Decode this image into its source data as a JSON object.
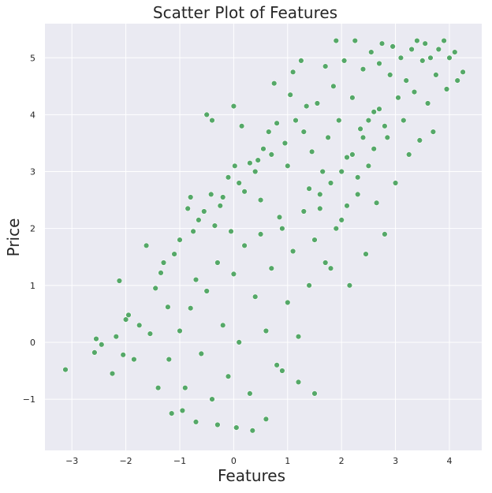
{
  "chart_data": {
    "type": "scatter",
    "title": "Scatter Plot of Features",
    "xlabel": "Features",
    "ylabel": "Price",
    "xlim": [
      -3.5,
      4.6
    ],
    "ylim": [
      -1.9,
      5.6
    ],
    "x_ticks": [
      -3,
      -2,
      -1,
      0,
      1,
      2,
      3,
      4
    ],
    "x_tick_labels": [
      "−3",
      "−2",
      "−1",
      "0",
      "1",
      "2",
      "3",
      "4"
    ],
    "y_ticks": [
      -1,
      0,
      1,
      2,
      3,
      4,
      5
    ],
    "y_tick_labels": [
      "−1",
      "0",
      "1",
      "2",
      "3",
      "4",
      "5"
    ],
    "grid": true,
    "legend": "none",
    "colors": {
      "marker": "#55a868",
      "marker_edge": "#ffffff",
      "background": "#eaeaf2",
      "grid": "#ffffff"
    },
    "series": [
      {
        "points": [
          [
            -3.12,
            -0.48
          ],
          [
            -2.58,
            -0.18
          ],
          [
            -2.55,
            0.06
          ],
          [
            -2.45,
            -0.04
          ],
          [
            -2.25,
            -0.55
          ],
          [
            -2.18,
            0.1
          ],
          [
            -2.12,
            1.08
          ],
          [
            -2.05,
            -0.22
          ],
          [
            -2.0,
            0.4
          ],
          [
            -1.95,
            0.48
          ],
          [
            -1.85,
            -0.3
          ],
          [
            -1.75,
            0.3
          ],
          [
            -1.62,
            1.7
          ],
          [
            -1.55,
            0.15
          ],
          [
            -1.45,
            0.95
          ],
          [
            -1.4,
            -0.8
          ],
          [
            -1.35,
            1.22
          ],
          [
            -1.3,
            1.4
          ],
          [
            -1.22,
            0.62
          ],
          [
            -1.15,
            -1.25
          ],
          [
            -1.1,
            1.55
          ],
          [
            -1.0,
            1.8
          ],
          [
            -0.95,
            -1.2
          ],
          [
            -0.85,
            2.35
          ],
          [
            -0.8,
            2.55
          ],
          [
            -0.75,
            1.95
          ],
          [
            -0.7,
            -1.4
          ],
          [
            -0.65,
            2.15
          ],
          [
            -0.55,
            2.3
          ],
          [
            -0.5,
            4.0
          ],
          [
            -0.42,
            2.6
          ],
          [
            -0.4,
            3.9
          ],
          [
            -0.35,
            2.05
          ],
          [
            -0.3,
            -1.45
          ],
          [
            -0.25,
            2.4
          ],
          [
            -0.2,
            2.55
          ],
          [
            -0.1,
            2.9
          ],
          [
            -0.05,
            1.95
          ],
          [
            0.0,
            4.15
          ],
          [
            0.02,
            3.1
          ],
          [
            0.05,
            -1.5
          ],
          [
            0.1,
            2.8
          ],
          [
            0.15,
            3.8
          ],
          [
            0.2,
            2.65
          ],
          [
            0.3,
            3.15
          ],
          [
            0.35,
            -1.55
          ],
          [
            0.4,
            3.0
          ],
          [
            0.45,
            3.2
          ],
          [
            0.5,
            2.5
          ],
          [
            0.55,
            3.4
          ],
          [
            0.6,
            -1.35
          ],
          [
            0.65,
            3.7
          ],
          [
            0.7,
            3.3
          ],
          [
            0.75,
            4.55
          ],
          [
            0.8,
            3.85
          ],
          [
            0.85,
            2.2
          ],
          [
            0.9,
            -0.5
          ],
          [
            0.95,
            3.5
          ],
          [
            1.0,
            3.1
          ],
          [
            1.05,
            4.35
          ],
          [
            1.1,
            4.75
          ],
          [
            1.15,
            3.9
          ],
          [
            1.2,
            -0.7
          ],
          [
            1.25,
            4.95
          ],
          [
            1.3,
            3.7
          ],
          [
            1.35,
            4.15
          ],
          [
            1.4,
            2.7
          ],
          [
            1.45,
            3.35
          ],
          [
            1.5,
            -0.9
          ],
          [
            1.55,
            4.2
          ],
          [
            1.6,
            2.35
          ],
          [
            1.65,
            3.0
          ],
          [
            1.7,
            4.85
          ],
          [
            1.75,
            3.6
          ],
          [
            1.8,
            1.3
          ],
          [
            1.85,
            4.5
          ],
          [
            1.9,
            5.3
          ],
          [
            1.95,
            3.9
          ],
          [
            2.0,
            2.15
          ],
          [
            2.05,
            4.95
          ],
          [
            2.1,
            3.25
          ],
          [
            2.15,
            1.0
          ],
          [
            2.2,
            4.3
          ],
          [
            2.25,
            5.3
          ],
          [
            2.3,
            2.6
          ],
          [
            2.35,
            3.75
          ],
          [
            2.4,
            4.8
          ],
          [
            2.45,
            1.55
          ],
          [
            2.5,
            3.1
          ],
          [
            2.55,
            5.1
          ],
          [
            2.6,
            4.05
          ],
          [
            2.65,
            2.45
          ],
          [
            2.7,
            4.9
          ],
          [
            2.75,
            5.25
          ],
          [
            2.8,
            1.9
          ],
          [
            2.85,
            3.6
          ],
          [
            2.9,
            4.7
          ],
          [
            2.95,
            5.2
          ],
          [
            3.0,
            2.8
          ],
          [
            3.05,
            4.3
          ],
          [
            3.1,
            5.0
          ],
          [
            3.15,
            3.9
          ],
          [
            3.2,
            4.6
          ],
          [
            3.25,
            3.3
          ],
          [
            3.3,
            5.15
          ],
          [
            3.35,
            4.4
          ],
          [
            3.4,
            5.3
          ],
          [
            3.45,
            3.55
          ],
          [
            3.5,
            4.95
          ],
          [
            3.55,
            5.25
          ],
          [
            3.6,
            4.2
          ],
          [
            3.65,
            5.0
          ],
          [
            3.7,
            3.7
          ],
          [
            3.75,
            4.7
          ],
          [
            3.8,
            5.15
          ],
          [
            3.9,
            5.3
          ],
          [
            3.95,
            4.45
          ],
          [
            4.0,
            5.0
          ],
          [
            4.1,
            5.1
          ],
          [
            4.15,
            4.6
          ],
          [
            4.25,
            4.75
          ],
          [
            -1.2,
            -0.3
          ],
          [
            -1.0,
            0.2
          ],
          [
            -0.9,
            -0.8
          ],
          [
            -0.8,
            0.6
          ],
          [
            -0.7,
            1.1
          ],
          [
            -0.6,
            -0.2
          ],
          [
            -0.5,
            0.9
          ],
          [
            -0.4,
            -1.0
          ],
          [
            -0.3,
            1.4
          ],
          [
            -0.2,
            0.3
          ],
          [
            -0.1,
            -0.6
          ],
          [
            0.0,
            1.2
          ],
          [
            0.1,
            0.0
          ],
          [
            0.2,
            1.7
          ],
          [
            0.3,
            -0.9
          ],
          [
            0.4,
            0.8
          ],
          [
            0.5,
            1.9
          ],
          [
            0.6,
            0.2
          ],
          [
            0.7,
            1.3
          ],
          [
            0.8,
            -0.4
          ],
          [
            0.9,
            2.0
          ],
          [
            1.0,
            0.7
          ],
          [
            1.1,
            1.6
          ],
          [
            1.2,
            0.1
          ],
          [
            1.3,
            2.3
          ],
          [
            1.4,
            1.0
          ],
          [
            1.5,
            1.8
          ],
          [
            1.6,
            2.6
          ],
          [
            1.7,
            1.4
          ],
          [
            1.8,
            2.8
          ],
          [
            1.9,
            2.0
          ],
          [
            2.0,
            3.0
          ],
          [
            2.1,
            2.4
          ],
          [
            2.2,
            3.3
          ],
          [
            2.3,
            2.9
          ],
          [
            2.4,
            3.6
          ],
          [
            2.5,
            3.9
          ],
          [
            2.6,
            3.4
          ],
          [
            2.7,
            4.1
          ],
          [
            2.8,
            3.8
          ]
        ]
      }
    ]
  }
}
